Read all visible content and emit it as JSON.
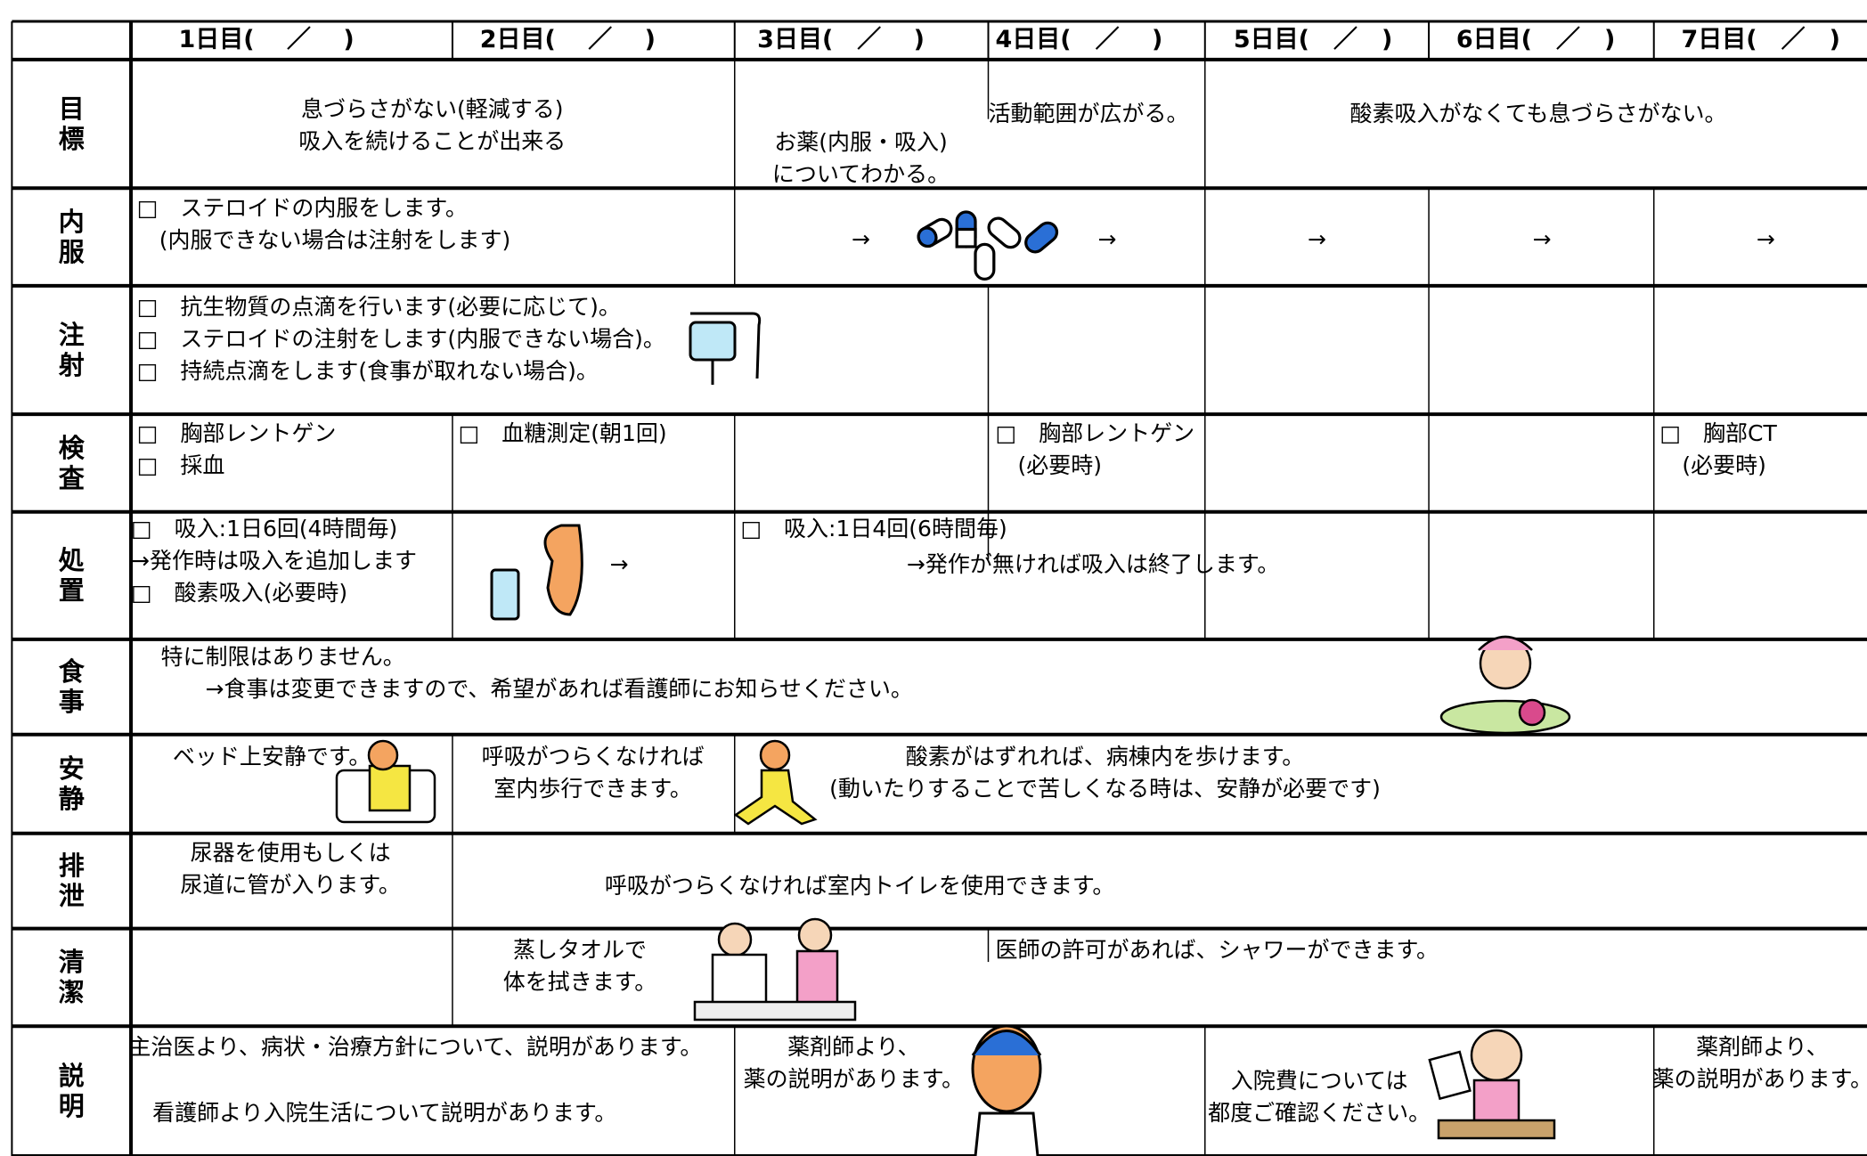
{
  "header": {
    "days": [
      "1日目(　 ／　 )",
      "2日目(　 ／　 )",
      "3日目(　／　 )",
      "4日目(　／　 )",
      "5日目(　／　)",
      "6日目(　／　)",
      "7日目(　／　)"
    ]
  },
  "rows": [
    {
      "label": "目標",
      "items": [
        "息づらさがない(軽減する)\n吸入を続けることが出来る",
        "お薬(内服・吸入)\nについてわかる。",
        "活動範囲が広がる。",
        "酸素吸入がなくても息づらさがない。"
      ]
    },
    {
      "label": "内服",
      "items": [
        "□　ステロイドの内服をします。\n　(内服できない場合は注射をします)",
        "→",
        "→",
        "→",
        "→",
        "→"
      ]
    },
    {
      "label": "注射",
      "items": [
        "□　抗生物質の点滴を行います(必要に応じて)。\n□　ステロイドの注射をします(内服できない場合)。\n□　持続点滴をします(食事が取れない場合)。"
      ]
    },
    {
      "label": "検査",
      "items": [
        "□　胸部レントゲン\n□　採血",
        "□　血糖測定(朝1回)",
        "□　胸部レントゲン\n　(必要時)",
        "□　胸部CT\n　(必要時)"
      ]
    },
    {
      "label": "処置",
      "items": [
        "□　吸入:1日6回(4時間毎)\n→発作時は吸入を追加します\n□　酸素吸入(必要時)",
        "→",
        "□　吸入:1日4回(6時間毎)",
        "→発作が無ければ吸入は終了します。"
      ]
    },
    {
      "label": "食事",
      "items": [
        "特に制限はありません。\n　　→食事は変更できますので、希望があれば看護師にお知らせください。"
      ]
    },
    {
      "label": "安静",
      "items": [
        "ベッド上安静です。",
        "呼吸がつらくなければ\n室内歩行できます。",
        "酸素がはずれれば、病棟内を歩けます。\n(動いたりすることで苦しくなる時は、安静が必要です)"
      ]
    },
    {
      "label": "排泄",
      "items": [
        "尿器を使用もしくは\n尿道に管が入ります。",
        "呼吸がつらくなければ室内トイレを使用できます。"
      ]
    },
    {
      "label": "清潔",
      "items": [
        "蒸しタオルで\n体を拭きます。",
        "医師の許可があれば、シャワーができます。"
      ]
    },
    {
      "label": "説明",
      "items": [
        "主治医より、病状・治療方針について、説明があります。",
        "看護師より入院生活について説明があります。",
        "薬剤師より、\n薬の説明があります。",
        "入院費については\n都度ご確認ください。",
        "薬剤師より、\n薬の説明があります。"
      ]
    }
  ]
}
